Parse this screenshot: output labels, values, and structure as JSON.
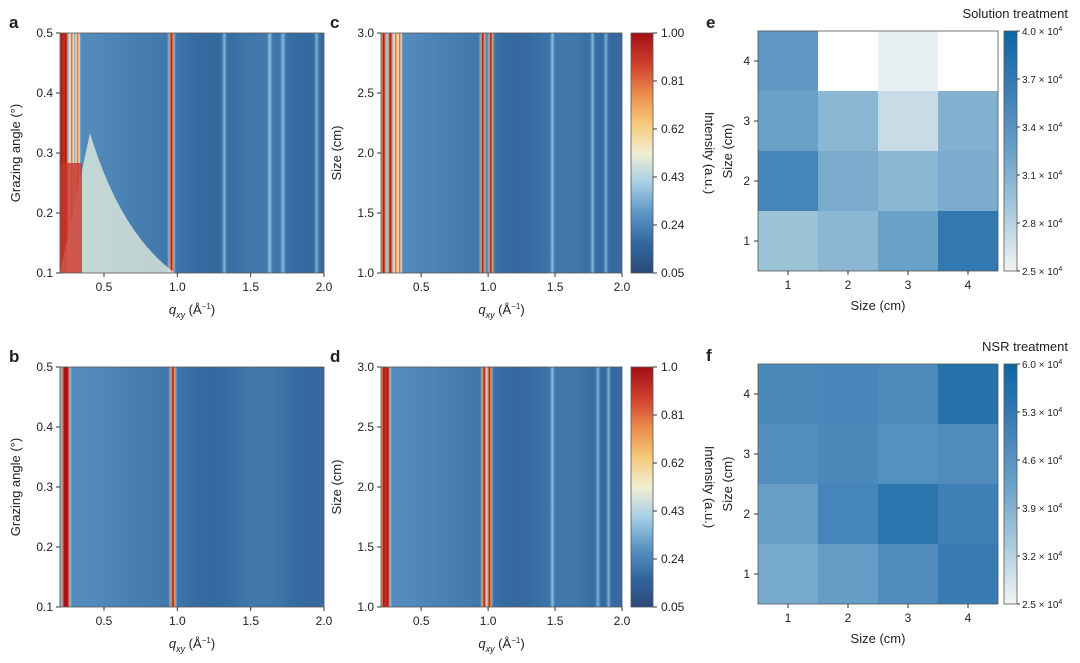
{
  "colors": {
    "heat_stops": [
      "#2a4a78",
      "#33679e",
      "#5c96c4",
      "#a6cfe6",
      "#f2eed2",
      "#f5c97a",
      "#ea8a4c",
      "#cf3b2c",
      "#a50f15"
    ],
    "blue_stops": [
      "#f2f5f3",
      "#a9cadc",
      "#6aa1c8",
      "#3d7eb5",
      "#0c65a3"
    ]
  },
  "chart_data": [
    {
      "panel": "a",
      "type": "heatmap",
      "xlabel_main": "q",
      "xlabel_sub": "xy",
      "xlabel_unit": " (Å",
      "xlabel_sup": "−1",
      "xlabel_end": ")",
      "ylabel": "Grazing angle (°)",
      "xlim": [
        0.2,
        2.0
      ],
      "ylim": [
        0.1,
        0.5
      ],
      "xticks": [
        "0.5",
        "1.0",
        "1.5",
        "2.0"
      ],
      "yticks": [
        "0.1",
        "0.2",
        "0.3",
        "0.4",
        "0.5"
      ],
      "peaks_q": [
        0.21,
        0.24,
        0.28,
        0.32,
        0.96,
        1.32,
        1.63,
        1.72,
        1.95
      ]
    },
    {
      "panel": "b",
      "type": "heatmap",
      "xlabel_main": "q",
      "xlabel_sub": "xy",
      "xlabel_unit": " (Å",
      "xlabel_sup": "−1",
      "xlabel_end": ")",
      "ylabel": "Grazing angle (°)",
      "xlim": [
        0.2,
        2.0
      ],
      "ylim": [
        0.1,
        0.5
      ],
      "xticks": [
        "0.5",
        "1.0",
        "1.5",
        "2.0"
      ],
      "yticks": [
        "0.1",
        "0.2",
        "0.3",
        "0.4",
        "0.5"
      ],
      "peaks_q": [
        0.23,
        0.25,
        0.97
      ]
    },
    {
      "panel": "c",
      "type": "heatmap",
      "xlabel_main": "q",
      "xlabel_sub": "xy",
      "xlabel_unit": " (Å",
      "xlabel_sup": "−1",
      "xlabel_end": ")",
      "ylabel": "Size (cm)",
      "xlim": [
        0.2,
        2.0
      ],
      "ylim": [
        1.0,
        3.0
      ],
      "xticks": [
        "0.5",
        "1.0",
        "1.5",
        "2.0"
      ],
      "yticks": [
        "1.0",
        "1.5",
        "2.0",
        "2.5",
        "3.0"
      ],
      "peaks_q": [
        0.22,
        0.27,
        0.31,
        0.34,
        0.96,
        1.02,
        1.48,
        1.78,
        1.88
      ],
      "colorbar": {
        "label": "Intensity (a.u.)",
        "ticks": [
          "1.00",
          "0.81",
          "0.62",
          "0.43",
          "0.24",
          "0.05"
        ]
      }
    },
    {
      "panel": "d",
      "type": "heatmap",
      "xlabel_main": "q",
      "xlabel_sub": "xy",
      "xlabel_unit": " (Å",
      "xlabel_sup": "−1",
      "xlabel_end": ")",
      "ylabel": "Size (cm)",
      "xlim": [
        0.2,
        2.0
      ],
      "ylim": [
        1.0,
        3.0
      ],
      "xticks": [
        "0.5",
        "1.0",
        "1.5",
        "2.0"
      ],
      "yticks": [
        "1.0",
        "1.5",
        "2.0",
        "2.5",
        "3.0"
      ],
      "peaks_q": [
        0.22,
        0.25,
        0.97,
        1.01,
        1.48,
        1.82,
        1.9
      ],
      "colorbar": {
        "label": "Intensity (a.u.)",
        "ticks": [
          "1.0",
          "0.81",
          "0.62",
          "0.43",
          "0.24",
          "0.05"
        ]
      }
    },
    {
      "panel": "e",
      "type": "heatmap",
      "title": "Solution treatment",
      "xlabel": "Size (cm)",
      "ylabel": "Size (cm)",
      "categories": [
        "1",
        "2",
        "3",
        "4"
      ],
      "values_rows_top_to_bottom": [
        [
          3.35,
          2.5,
          2.55,
          2.5
        ],
        [
          3.25,
          3.05,
          2.72,
          3.1
        ],
        [
          3.55,
          3.15,
          3.05,
          3.15
        ],
        [
          2.95,
          3.05,
          3.25,
          3.7
        ]
      ],
      "vmin": 2.5,
      "vmax": 4.0,
      "colorbar": {
        "mantissas": [
          "4.0",
          "3.7",
          "3.4",
          "3.1",
          "2.8",
          "2.5"
        ],
        "times": " × 10",
        "exponent": "4"
      }
    },
    {
      "panel": "f",
      "type": "heatmap",
      "title": "NSR treatment",
      "xlabel": "Size (cm)",
      "ylabel": "Size (cm)",
      "categories": [
        "1",
        "2",
        "3",
        "4"
      ],
      "values_rows_top_to_bottom": [
        [
          4.85,
          4.9,
          4.8,
          5.55
        ],
        [
          4.7,
          4.85,
          4.65,
          4.75
        ],
        [
          4.3,
          4.95,
          5.45,
          5.1
        ],
        [
          4.05,
          4.35,
          4.75,
          5.2
        ]
      ],
      "vmin": 2.5,
      "vmax": 6.0,
      "colorbar": {
        "mantissas": [
          "6.0",
          "5.3",
          "4.6",
          "3.9",
          "3.2",
          "2.5"
        ],
        "times": " × 10",
        "exponent": "4"
      }
    }
  ]
}
